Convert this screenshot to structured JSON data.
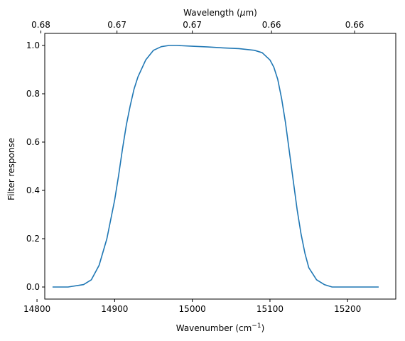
{
  "chart_data": {
    "type": "line",
    "xlabel": "Wavenumber (cm",
    "xlabel_sup": "−1",
    "xlabel_end": ")",
    "ylabel": "Filter response",
    "top_xlabel": "Wavelength (",
    "top_xlabel_mu": "μ",
    "top_xlabel_end": "m)",
    "xlim": [
      14810,
      15262
    ],
    "ylim": [
      -0.05,
      1.05
    ],
    "x_ticks": [
      14800,
      14900,
      15000,
      15100,
      15200
    ],
    "x_tick_labels": [
      "14800",
      "14900",
      "15000",
      "15100",
      "15200"
    ],
    "y_ticks": [
      0.0,
      0.2,
      0.4,
      0.6,
      0.8,
      1.0
    ],
    "y_tick_labels": [
      "0.0",
      "0.2",
      "0.4",
      "0.6",
      "0.8",
      "1.0"
    ],
    "top_tick_positions_wavenumber": [
      14805,
      14903,
      15000,
      15102,
      15209
    ],
    "top_tick_labels": [
      "0.68",
      "0.67",
      "0.67",
      "0.66",
      "0.66"
    ],
    "grid": false,
    "legend": "none",
    "series": [
      {
        "color": "#1f77b4",
        "x": [
          14820,
          14840,
          14860,
          14870,
          14880,
          14890,
          14900,
          14905,
          14910,
          14915,
          14920,
          14925,
          14930,
          14940,
          14950,
          14960,
          14970,
          14980,
          15000,
          15020,
          15040,
          15060,
          15080,
          15090,
          15100,
          15105,
          15110,
          15115,
          15120,
          15125,
          15130,
          15135,
          15140,
          15145,
          15150,
          15160,
          15170,
          15180,
          15200,
          15220,
          15240
        ],
        "y": [
          0.0,
          0.0,
          0.01,
          0.03,
          0.09,
          0.2,
          0.36,
          0.46,
          0.57,
          0.67,
          0.75,
          0.82,
          0.87,
          0.94,
          0.98,
          0.995,
          1.0,
          1.0,
          0.997,
          0.994,
          0.99,
          0.987,
          0.98,
          0.97,
          0.94,
          0.91,
          0.86,
          0.78,
          0.68,
          0.56,
          0.44,
          0.32,
          0.22,
          0.14,
          0.08,
          0.03,
          0.01,
          0.0,
          0.0,
          0.0,
          0.0
        ]
      }
    ]
  }
}
